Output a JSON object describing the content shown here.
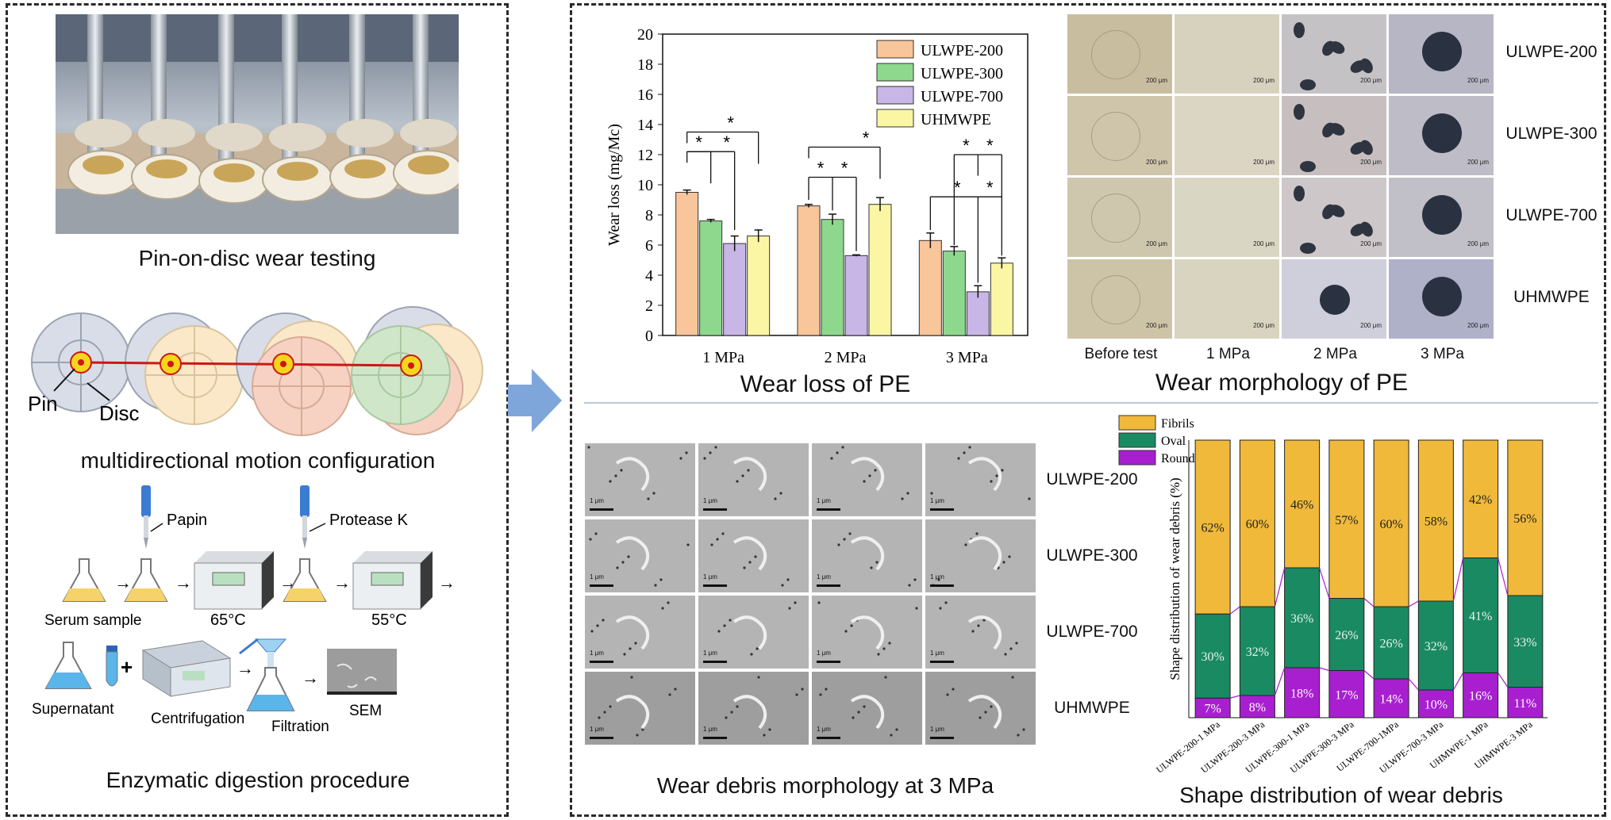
{
  "left": {
    "caption_photo": "Pin-on-disc wear testing",
    "caption_motion": "multidirectional motion configuration",
    "pin_label": "Pin",
    "disc_label": "Disc",
    "papin": "Papin",
    "protease": "Protease K",
    "serum": "Serum sample",
    "temp1": "65°C",
    "temp2": "55°C",
    "supernatant": "Supernatant",
    "centrifugation": "Centrifugation",
    "filtration": "Filtration",
    "sem": "SEM",
    "caption_enzyme": "Enzymatic digestion procedure"
  },
  "wear_loss": {
    "caption": "Wear loss of PE",
    "star": "*"
  },
  "morphology": {
    "caption": "Wear morphology of PE",
    "rows": [
      "ULWPE-200",
      "ULWPE-300",
      "ULWPE-700",
      "UHMWPE"
    ],
    "cols": [
      "Before test",
      "1 MPa",
      "2 MPa",
      "3 MPa"
    ],
    "scale": "200 μm"
  },
  "debris": {
    "caption": "Wear debris morphology at 3 MPa",
    "rows": [
      "ULWPE-200",
      "ULWPE-300",
      "ULWPE-700",
      "UHMWPE"
    ],
    "scale": "1 μm"
  },
  "colors": {
    "orange": "#f9c59b",
    "green": "#8ed88e",
    "purple": "#c8b6e6",
    "yellow": "#fbf6a3",
    "fibrils": "#f0b93a",
    "oval": "#1a8a62",
    "round": "#a81fd0",
    "arrow": "#7fa6da"
  },
  "chart_data": [
    {
      "type": "bar",
      "categories": [
        "1 MPa",
        "2 MPa",
        "3 MPa"
      ],
      "series": [
        {
          "name": "ULWPE-200",
          "values": [
            9.5,
            8.6,
            6.3
          ],
          "errors": [
            0.15,
            0.1,
            0.5
          ]
        },
        {
          "name": "ULWPE-300",
          "values": [
            7.6,
            7.7,
            5.6
          ],
          "errors": [
            0.1,
            0.35,
            0.3
          ]
        },
        {
          "name": "ULWPE-700",
          "values": [
            6.1,
            5.3,
            2.9
          ],
          "errors": [
            0.5,
            0.05,
            0.4
          ]
        },
        {
          "name": "UHMWPE",
          "values": [
            6.6,
            8.7,
            4.8
          ],
          "errors": [
            0.4,
            0.45,
            0.35
          ]
        }
      ],
      "xlabel": "",
      "ylabel": "Wear loss (mg/Mc)",
      "ylim": [
        0,
        20
      ],
      "yticks": [
        "0",
        "2",
        "4",
        "6",
        "8",
        "10",
        "12",
        "14",
        "16",
        "18",
        "20"
      ],
      "legend": "top-right"
    },
    {
      "type": "bar",
      "stacked": true,
      "title": "Shape distribution of wear debris",
      "categories": [
        "ULWPE-200-1 MPa",
        "ULWPE-200-3 MPa",
        "ULWPE-300-1 MPa",
        "ULWPE-300-3 MPa",
        "ULWPE-700-1MPa",
        "ULWPE-700-3 MPa",
        "UHMWPE-1 MPa",
        "UHMWPE-3 MPa"
      ],
      "series": [
        {
          "name": "Round",
          "values": [
            7,
            8,
            18,
            17,
            14,
            10,
            16,
            11
          ],
          "labels": [
            "7%",
            "8%",
            "18%",
            "17%",
            "14%",
            "10%",
            "16%",
            "11%"
          ]
        },
        {
          "name": "Oval",
          "values": [
            30,
            32,
            36,
            26,
            26,
            32,
            41,
            33
          ],
          "labels": [
            "30%",
            "32%",
            "36%",
            "26%",
            "26%",
            "32%",
            "41%",
            "33%"
          ]
        },
        {
          "name": "Fibrils",
          "values": [
            62,
            60,
            46,
            57,
            60,
            58,
            42,
            56
          ],
          "labels": [
            "62%",
            "60%",
            "46%",
            "57%",
            "60%",
            "58%",
            "42%",
            "56%"
          ]
        }
      ],
      "ylabel": "Shape distribution of wear debris (%)",
      "ylim": [
        0,
        100
      ],
      "legend": "top-left"
    }
  ]
}
